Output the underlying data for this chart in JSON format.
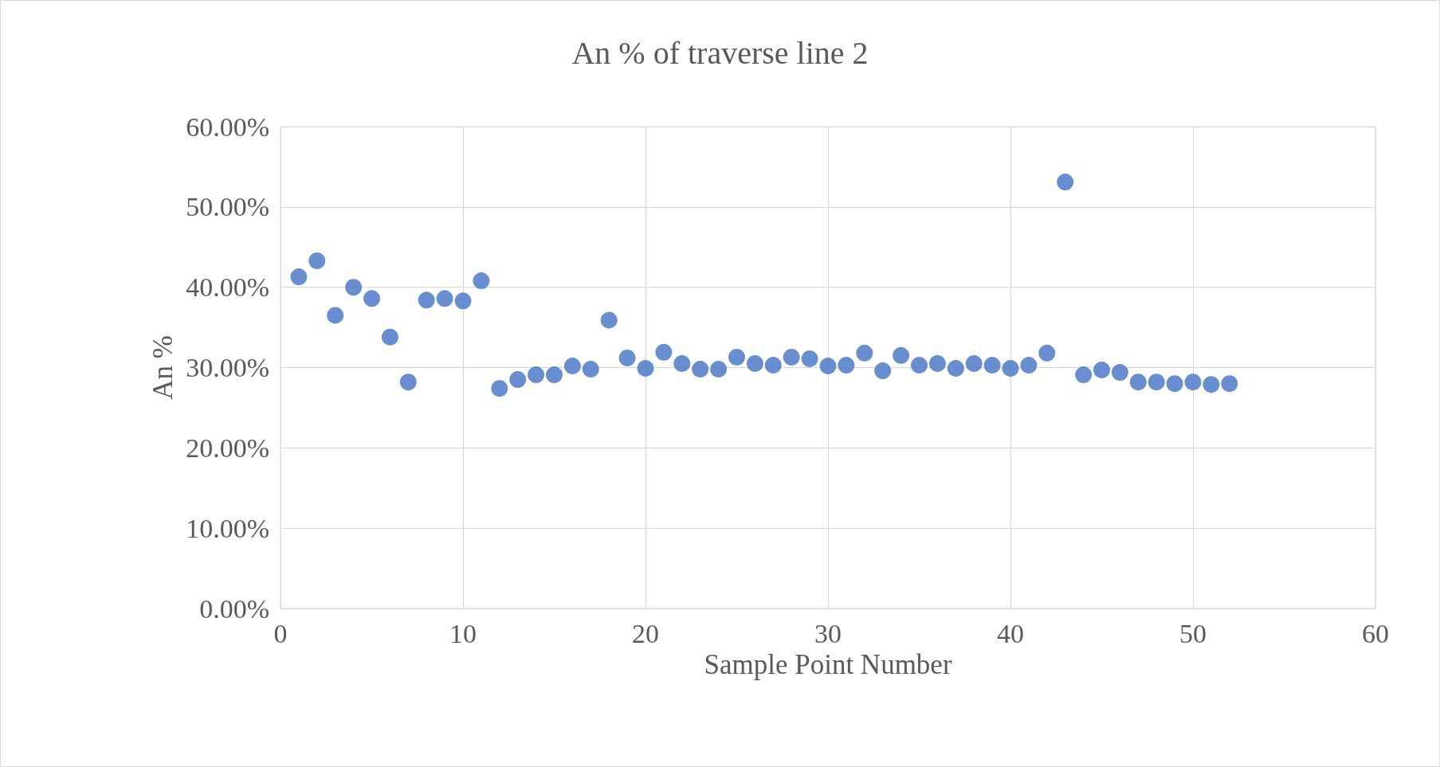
{
  "chart_data": {
    "type": "scatter",
    "title": "An % of traverse line 2",
    "xlabel": "Sample Point Number",
    "ylabel": "An %",
    "x": [
      1,
      2,
      3,
      4,
      5,
      6,
      7,
      8,
      9,
      10,
      11,
      12,
      13,
      14,
      15,
      16,
      17,
      18,
      19,
      20,
      21,
      22,
      23,
      24,
      25,
      26,
      27,
      28,
      29,
      30,
      31,
      32,
      33,
      34,
      35,
      36,
      37,
      38,
      39,
      40,
      41,
      42,
      43,
      44,
      45,
      46,
      47,
      48,
      49,
      50,
      51,
      52
    ],
    "series": [
      {
        "color": "#4472c4",
        "values": [
          41.3,
          43.3,
          36.5,
          40.0,
          38.6,
          33.8,
          28.2,
          38.4,
          38.6,
          38.3,
          40.8,
          27.4,
          28.5,
          29.1,
          29.1,
          30.2,
          29.8,
          35.9,
          31.2,
          29.9,
          31.9,
          30.5,
          29.8,
          29.8,
          31.3,
          30.5,
          30.3,
          31.3,
          31.1,
          30.2,
          30.3,
          31.8,
          29.6,
          31.5,
          30.3,
          30.5,
          29.9,
          30.5,
          30.3,
          29.9,
          30.3,
          31.8,
          53.1,
          29.1,
          29.7,
          29.4,
          28.2,
          28.2,
          28.0,
          28.2,
          27.9,
          28.0
        ]
      }
    ],
    "xlim": [
      0,
      60
    ],
    "xticks": [
      0,
      10,
      20,
      30,
      40,
      50,
      60
    ],
    "ylim": [
      0,
      60
    ],
    "yticks": [
      {
        "value": 0,
        "label": "0.00%"
      },
      {
        "value": 10,
        "label": "10.00%"
      },
      {
        "value": 20,
        "label": "20.00%"
      },
      {
        "value": 30,
        "label": "30.00%"
      },
      {
        "value": 40,
        "label": "40.00%"
      },
      {
        "value": 50,
        "label": "50.00%"
      },
      {
        "value": 60,
        "label": "60.00%"
      }
    ],
    "grid": true,
    "marker": "circle"
  }
}
